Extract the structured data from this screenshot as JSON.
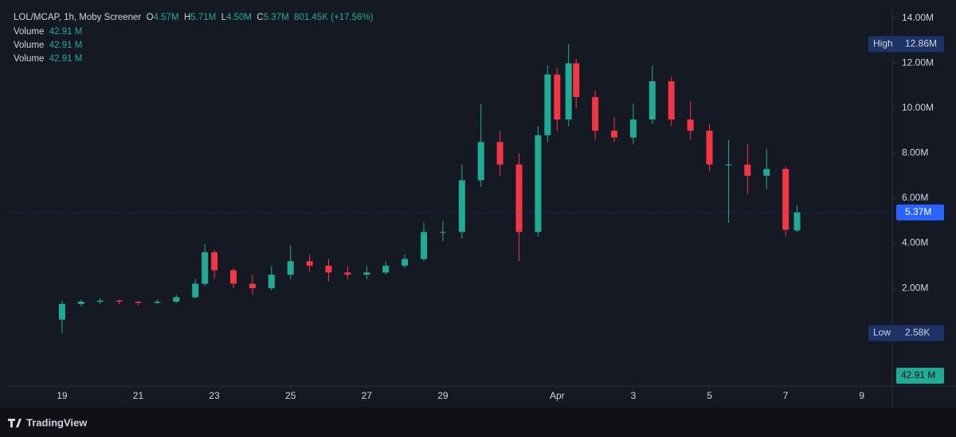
{
  "header": {
    "symbol": "LOL/MCAP, 1h, Moby Screener",
    "ohlc": [
      {
        "key": "O",
        "value": "4.57M"
      },
      {
        "key": "H",
        "value": "5.71M"
      },
      {
        "key": "L",
        "value": "4.50M"
      },
      {
        "key": "C",
        "value": "5.37M"
      }
    ],
    "change": "801.45K (+17.56%)",
    "volume_rows": [
      {
        "name": "Volume",
        "value": "42.91 M"
      },
      {
        "name": "Volume",
        "value": "42.91 M"
      },
      {
        "name": "Volume",
        "value": "42.91 M"
      }
    ]
  },
  "chart_data": {
    "type": "candlestick",
    "x": [
      0,
      0.5,
      1,
      1.5,
      2,
      2.5,
      3,
      3.5,
      3.75,
      4,
      4.5,
      5,
      5.5,
      6,
      6.5,
      7,
      7.5,
      8,
      8.5,
      9,
      9.5,
      10,
      10.5,
      11,
      11.5,
      12,
      12.5,
      12.75,
      13,
      13.3,
      13.5,
      14,
      14.5,
      15,
      15.5,
      16,
      16.5,
      17,
      17.5,
      18,
      18.5,
      19,
      19.3
    ],
    "open": [
      0.6,
      1.3,
      1.4,
      1.45,
      1.4,
      1.35,
      1.4,
      1.6,
      2.2,
      3.6,
      2.8,
      2.2,
      2.0,
      2.6,
      3.2,
      3.0,
      2.7,
      2.6,
      2.7,
      3.0,
      3.3,
      4.5,
      4.5,
      6.8,
      8.5,
      7.5,
      4.5,
      8.8,
      11.5,
      9.5,
      12.0,
      10.5,
      9.0,
      8.7,
      9.5,
      11.2,
      9.5,
      9.0,
      7.5,
      7.5,
      7.0,
      7.3,
      4.57
    ],
    "high": [
      1.45,
      1.5,
      1.55,
      1.5,
      1.45,
      1.5,
      1.7,
      2.4,
      3.95,
      3.7,
      2.9,
      2.6,
      3.0,
      3.9,
      3.5,
      3.3,
      3.0,
      3.0,
      3.2,
      3.5,
      4.9,
      5.0,
      7.5,
      10.2,
      9.0,
      8.0,
      9.2,
      11.9,
      11.8,
      12.86,
      12.2,
      10.8,
      9.6,
      10.2,
      11.9,
      11.4,
      10.3,
      9.3,
      8.6,
      8.4,
      8.2,
      7.4,
      5.71
    ],
    "low": [
      0.00258,
      1.2,
      1.3,
      1.3,
      1.25,
      1.3,
      1.35,
      1.55,
      2.1,
      2.4,
      2.0,
      1.7,
      1.9,
      2.4,
      2.7,
      2.3,
      2.4,
      2.4,
      2.6,
      2.9,
      3.2,
      4.1,
      4.2,
      6.5,
      7.0,
      3.2,
      4.3,
      8.5,
      9.0,
      9.2,
      10.0,
      8.6,
      8.5,
      8.4,
      9.3,
      9.2,
      8.6,
      7.2,
      4.9,
      6.2,
      6.4,
      4.3,
      4.5
    ],
    "close": [
      1.3,
      1.4,
      1.45,
      1.4,
      1.35,
      1.4,
      1.6,
      2.2,
      3.6,
      2.8,
      2.2,
      2.0,
      2.6,
      3.2,
      3.0,
      2.7,
      2.6,
      2.7,
      3.0,
      3.3,
      4.5,
      4.5,
      6.8,
      8.5,
      7.5,
      4.5,
      8.8,
      11.5,
      9.5,
      12.0,
      10.5,
      9.0,
      8.7,
      9.5,
      11.2,
      9.5,
      9.0,
      7.5,
      7.5,
      7.0,
      7.3,
      4.6,
      5.37
    ],
    "xlim": [
      -1.42,
      21.8
    ],
    "ylim": [
      -2.35,
      14.46
    ],
    "xticks": [
      {
        "value": 0,
        "label": "19"
      },
      {
        "value": 2,
        "label": "21"
      },
      {
        "value": 4,
        "label": "23"
      },
      {
        "value": 6,
        "label": "25"
      },
      {
        "value": 8,
        "label": "27"
      },
      {
        "value": 10,
        "label": "29"
      },
      {
        "value": 13,
        "label": "Apr"
      },
      {
        "value": 15,
        "label": "3"
      },
      {
        "value": 17,
        "label": "5"
      },
      {
        "value": 19,
        "label": "7"
      },
      {
        "value": 21,
        "label": "9"
      }
    ],
    "yticks": [
      {
        "value": 2,
        "label": "2.00M"
      },
      {
        "value": 4,
        "label": "4.00M"
      },
      {
        "value": 6,
        "label": "6.00M"
      },
      {
        "value": 8,
        "label": "8.00M"
      },
      {
        "value": 10,
        "label": "10.00M"
      },
      {
        "value": 12,
        "label": "12.00M"
      },
      {
        "value": 14,
        "label": "14.00M"
      }
    ],
    "colors": {
      "up": "#22ab94",
      "down": "#f23645"
    },
    "markers": {
      "high": {
        "name": "High",
        "value": 12.86,
        "label": "12.86M"
      },
      "low": {
        "name": "Low",
        "value": 0.00258,
        "label": "2.58K"
      },
      "last": {
        "value": 5.37,
        "label": "5.37M"
      }
    },
    "volume_label": "42.91 M"
  },
  "footer": {
    "brand": "TradingView"
  }
}
